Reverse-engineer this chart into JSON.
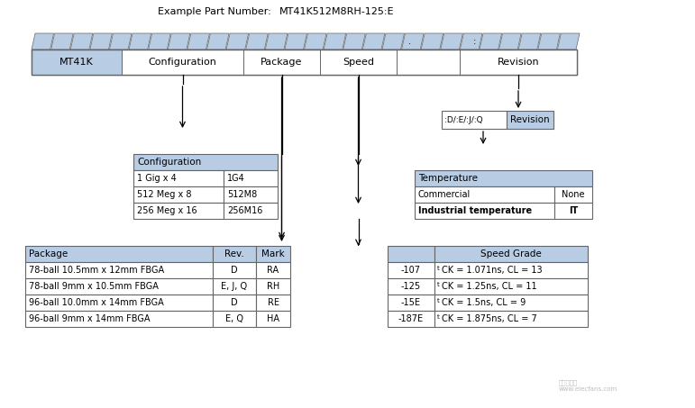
{
  "title_left": "Example Part Number:",
  "title_right": "MT41K512M8RH-125:E",
  "bg_color": "#ffffff",
  "header_fill": "#b8cce4",
  "cell_fill": "#ffffff",
  "border_color": "#666666",
  "top_bar_segments": [
    "MT41K",
    "Configuration",
    "Package",
    "Speed",
    "",
    "Revision"
  ],
  "top_bar_seg_starts": [
    35,
    135,
    270,
    355,
    440,
    510
  ],
  "top_bar_seg_ends": [
    135,
    270,
    355,
    440,
    510,
    640
  ],
  "config_header": "Configuration",
  "config_rows": [
    [
      "1 Gig x 4",
      "1G4"
    ],
    [
      "512 Meg x 8",
      "512M8"
    ],
    [
      "256 Meg x 16",
      "256M16"
    ]
  ],
  "package_header": [
    "Package",
    "Rev.",
    "Mark"
  ],
  "package_rows": [
    [
      "78-ball 10.5mm x 12mm FBGA",
      "D",
      "RA"
    ],
    [
      "78-ball 9mm x 10.5mm FBGA",
      "E, J, Q",
      "RH"
    ],
    [
      "96-ball 10.0mm x 14mm FBGA",
      "D",
      "RE"
    ],
    [
      "96-ball 9mm x 14mm FBGA",
      "E, Q",
      "HA"
    ]
  ],
  "revision_box_left": ":D/:E/:J/:Q",
  "revision_box_right": "Revision",
  "temp_header": "Temperature",
  "temp_rows": [
    [
      "Commercial",
      "None"
    ],
    [
      "Industrial temperature",
      "IT"
    ]
  ],
  "speed_header": "Speed Grade",
  "speed_rows": [
    [
      "-107",
      "tCK = 1.071ns, CL = 13"
    ],
    [
      "-125",
      "tCK = 1.25ns, CL = 11"
    ],
    [
      "-15E",
      "tCK = 1.5ns, CL = 9"
    ],
    [
      "-187E",
      "tCK = 1.875ns, CL = 7"
    ]
  ]
}
